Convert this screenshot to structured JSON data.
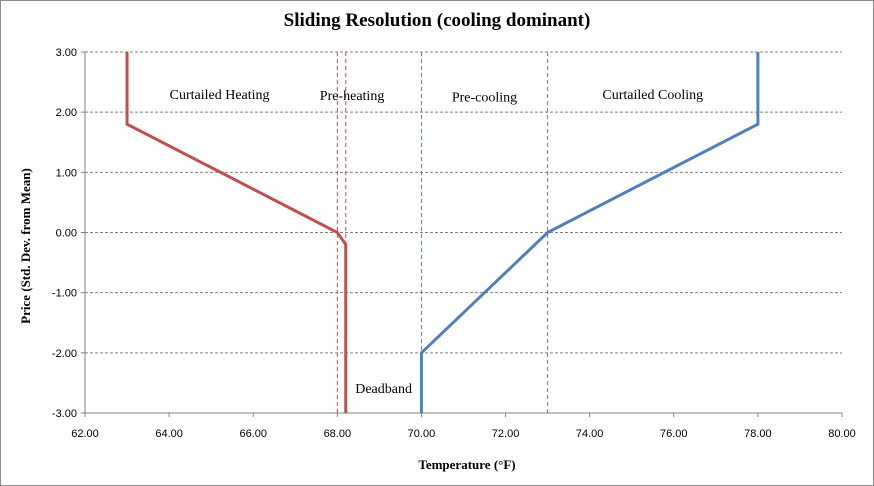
{
  "chart_data": {
    "type": "line",
    "title": "Sliding Resolution (cooling dominant)",
    "xlabel": "Temperature (°F)",
    "ylabel": "Price (Std. Dev. from Mean)",
    "xlim": [
      62,
      80
    ],
    "ylim": [
      -3,
      3
    ],
    "x_ticks": [
      "62.00",
      "64.00",
      "66.00",
      "68.00",
      "70.00",
      "72.00",
      "74.00",
      "76.00",
      "78.00",
      "80.00"
    ],
    "y_ticks": [
      "3.00",
      "2.00",
      "1.00",
      "0.00",
      "-1.00",
      "-2.00",
      "-3.00"
    ],
    "grid": "horizontal dashed",
    "series": [
      {
        "color": "#c0504d",
        "points": [
          [
            63.0,
            3.0
          ],
          [
            63.0,
            1.8
          ],
          [
            68.0,
            0.0
          ],
          [
            68.2,
            -0.2
          ],
          [
            68.2,
            -3.0
          ]
        ]
      },
      {
        "color": "#4f81bd",
        "points": [
          [
            70.0,
            -3.0
          ],
          [
            70.0,
            -2.0
          ],
          [
            73.0,
            0.0
          ],
          [
            78.0,
            1.8
          ],
          [
            78.0,
            3.0
          ]
        ]
      }
    ],
    "reference_lines": [
      {
        "x": 68.0,
        "color": "#c0504d"
      },
      {
        "x": 68.2,
        "color": "#c0504d"
      },
      {
        "x": 70.0,
        "color": "#4f81bd"
      },
      {
        "x": 73.0,
        "color": "#4f81bd"
      }
    ],
    "annotations": [
      {
        "text": "Curtailed Heating",
        "x": 65.2,
        "y": 2.22
      },
      {
        "text": "Pre-heating",
        "x": 68.35,
        "y": 2.2
      },
      {
        "text": "Pre-cooling",
        "x": 71.5,
        "y": 2.18
      },
      {
        "text": "Curtailed Cooling",
        "x": 75.5,
        "y": 2.22
      },
      {
        "text": "Deadband",
        "x": 69.1,
        "y": -2.67
      }
    ]
  }
}
